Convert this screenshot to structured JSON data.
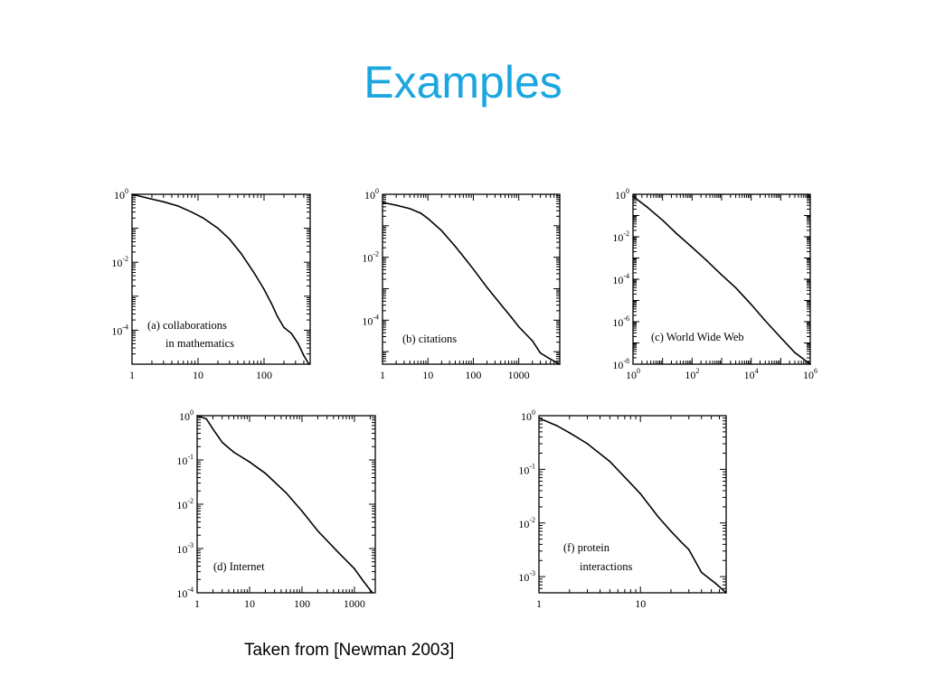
{
  "slide": {
    "title": "Examples",
    "caption": "Taken from [Newman 2003]"
  },
  "colors": {
    "title": "#1aa6e0",
    "ink": "#000000"
  },
  "chart_data": [
    {
      "type": "line",
      "annotation": [
        "(a) collaborations",
        "in mathematics"
      ],
      "xscale": "log",
      "yscale": "log",
      "xlim": [
        1,
        500
      ],
      "ylim": [
        1e-05,
        1
      ],
      "xticks": [
        {
          "v": 1,
          "b": "1",
          "e": ""
        },
        {
          "v": 10,
          "b": "10",
          "e": ""
        },
        {
          "v": 100,
          "b": "100",
          "e": ""
        }
      ],
      "yticks": [
        {
          "v": 1,
          "b": "10",
          "e": "0"
        },
        {
          "v": 0.01,
          "b": "10",
          "e": "-2"
        },
        {
          "v": 0.0001,
          "b": "10",
          "e": "-4"
        }
      ],
      "x": [
        1,
        2,
        3,
        5,
        8,
        12,
        20,
        30,
        45,
        70,
        100,
        130,
        160,
        200,
        260,
        330,
        400,
        480
      ],
      "y": [
        1,
        0.72,
        0.6,
        0.45,
        0.3,
        0.2,
        0.1,
        0.048,
        0.018,
        0.005,
        0.0016,
        0.0006,
        0.00025,
        0.00012,
        8e-05,
        4e-05,
        1.8e-05,
        1e-05
      ]
    },
    {
      "type": "line",
      "annotation": [
        "(b) citations"
      ],
      "xscale": "log",
      "yscale": "log",
      "xlim": [
        1,
        8000
      ],
      "ylim": [
        4e-06,
        1
      ],
      "xticks": [
        {
          "v": 1,
          "b": "1",
          "e": ""
        },
        {
          "v": 10,
          "b": "10",
          "e": ""
        },
        {
          "v": 100,
          "b": "100",
          "e": ""
        },
        {
          "v": 1000,
          "b": "1000",
          "e": ""
        }
      ],
      "yticks": [
        {
          "v": 1,
          "b": "10",
          "e": "0"
        },
        {
          "v": 0.01,
          "b": "10",
          "e": "-2"
        },
        {
          "v": 0.0001,
          "b": "10",
          "e": "-4"
        }
      ],
      "x": [
        1,
        2,
        4,
        7,
        10,
        20,
        40,
        70,
        100,
        200,
        400,
        700,
        1000,
        2000,
        3000,
        5000,
        8000
      ],
      "y": [
        0.55,
        0.45,
        0.35,
        0.25,
        0.17,
        0.07,
        0.022,
        0.008,
        0.0042,
        0.0011,
        0.00032,
        0.00012,
        6.2e-05,
        2.2e-05,
        9e-06,
        5.8e-06,
        4e-06
      ]
    },
    {
      "type": "line",
      "annotation": [
        "(c) World Wide Web"
      ],
      "xscale": "log",
      "yscale": "log",
      "xlim": [
        1,
        1000000
      ],
      "ylim": [
        1e-08,
        1
      ],
      "xticks": [
        {
          "v": 1,
          "b": "10",
          "e": "0"
        },
        {
          "v": 100,
          "b": "10",
          "e": "2"
        },
        {
          "v": 10000,
          "b": "10",
          "e": "4"
        },
        {
          "v": 1000000,
          "b": "10",
          "e": "6"
        }
      ],
      "yticks": [
        {
          "v": 1,
          "b": "10",
          "e": "0"
        },
        {
          "v": 0.01,
          "b": "10",
          "e": "-2"
        },
        {
          "v": 0.0001,
          "b": "10",
          "e": "-4"
        },
        {
          "v": 1e-06,
          "b": "10",
          "e": "-6"
        },
        {
          "v": 1e-08,
          "b": "10",
          "e": "-8"
        }
      ],
      "x": [
        1,
        3,
        10,
        30,
        100,
        300,
        1000,
        3000,
        10000,
        30000,
        100000,
        300000,
        1000000
      ],
      "y": [
        0.8,
        0.25,
        0.06,
        0.014,
        0.0032,
        0.0008,
        0.00016,
        4e-05,
        6.5e-06,
        1.1e-06,
        1.8e-07,
        3.5e-08,
        1e-08
      ]
    },
    {
      "type": "line",
      "annotation": [
        "(d) Internet"
      ],
      "xscale": "log",
      "yscale": "log",
      "xlim": [
        1,
        2500
      ],
      "ylim": [
        0.0001,
        1
      ],
      "xticks": [
        {
          "v": 1,
          "b": "1",
          "e": ""
        },
        {
          "v": 10,
          "b": "10",
          "e": ""
        },
        {
          "v": 100,
          "b": "100",
          "e": ""
        },
        {
          "v": 1000,
          "b": "1000",
          "e": ""
        }
      ],
      "yticks": [
        {
          "v": 1,
          "b": "10",
          "e": "0"
        },
        {
          "v": 0.1,
          "b": "10",
          "e": "-1"
        },
        {
          "v": 0.01,
          "b": "10",
          "e": "-2"
        },
        {
          "v": 0.001,
          "b": "10",
          "e": "-3"
        },
        {
          "v": 0.0001,
          "b": "10",
          "e": "-4"
        }
      ],
      "x": [
        1,
        1.5,
        2,
        3,
        5,
        10,
        20,
        50,
        100,
        200,
        500,
        1000,
        1500,
        2200
      ],
      "y": [
        1,
        0.85,
        0.5,
        0.25,
        0.15,
        0.09,
        0.05,
        0.018,
        0.007,
        0.0025,
        0.0008,
        0.00035,
        0.00018,
        0.0001
      ]
    },
    {
      "type": "line",
      "annotation": [
        "(f) protein",
        "interactions"
      ],
      "xscale": "log",
      "yscale": "log",
      "xlim": [
        1,
        70
      ],
      "ylim": [
        0.0005,
        1
      ],
      "xticks": [
        {
          "v": 1,
          "b": "1",
          "e": ""
        },
        {
          "v": 10,
          "b": "10",
          "e": ""
        }
      ],
      "yticks": [
        {
          "v": 1,
          "b": "10",
          "e": "0"
        },
        {
          "v": 0.1,
          "b": "10",
          "e": "-1"
        },
        {
          "v": 0.01,
          "b": "10",
          "e": "-2"
        },
        {
          "v": 0.001,
          "b": "10",
          "e": "-3"
        }
      ],
      "x": [
        1,
        1.5,
        2,
        3,
        5,
        8,
        10,
        15,
        20,
        25,
        30,
        40,
        55,
        70
      ],
      "y": [
        0.9,
        0.65,
        0.48,
        0.3,
        0.14,
        0.055,
        0.035,
        0.013,
        0.007,
        0.0045,
        0.0032,
        0.0012,
        0.00075,
        0.0005
      ]
    }
  ]
}
